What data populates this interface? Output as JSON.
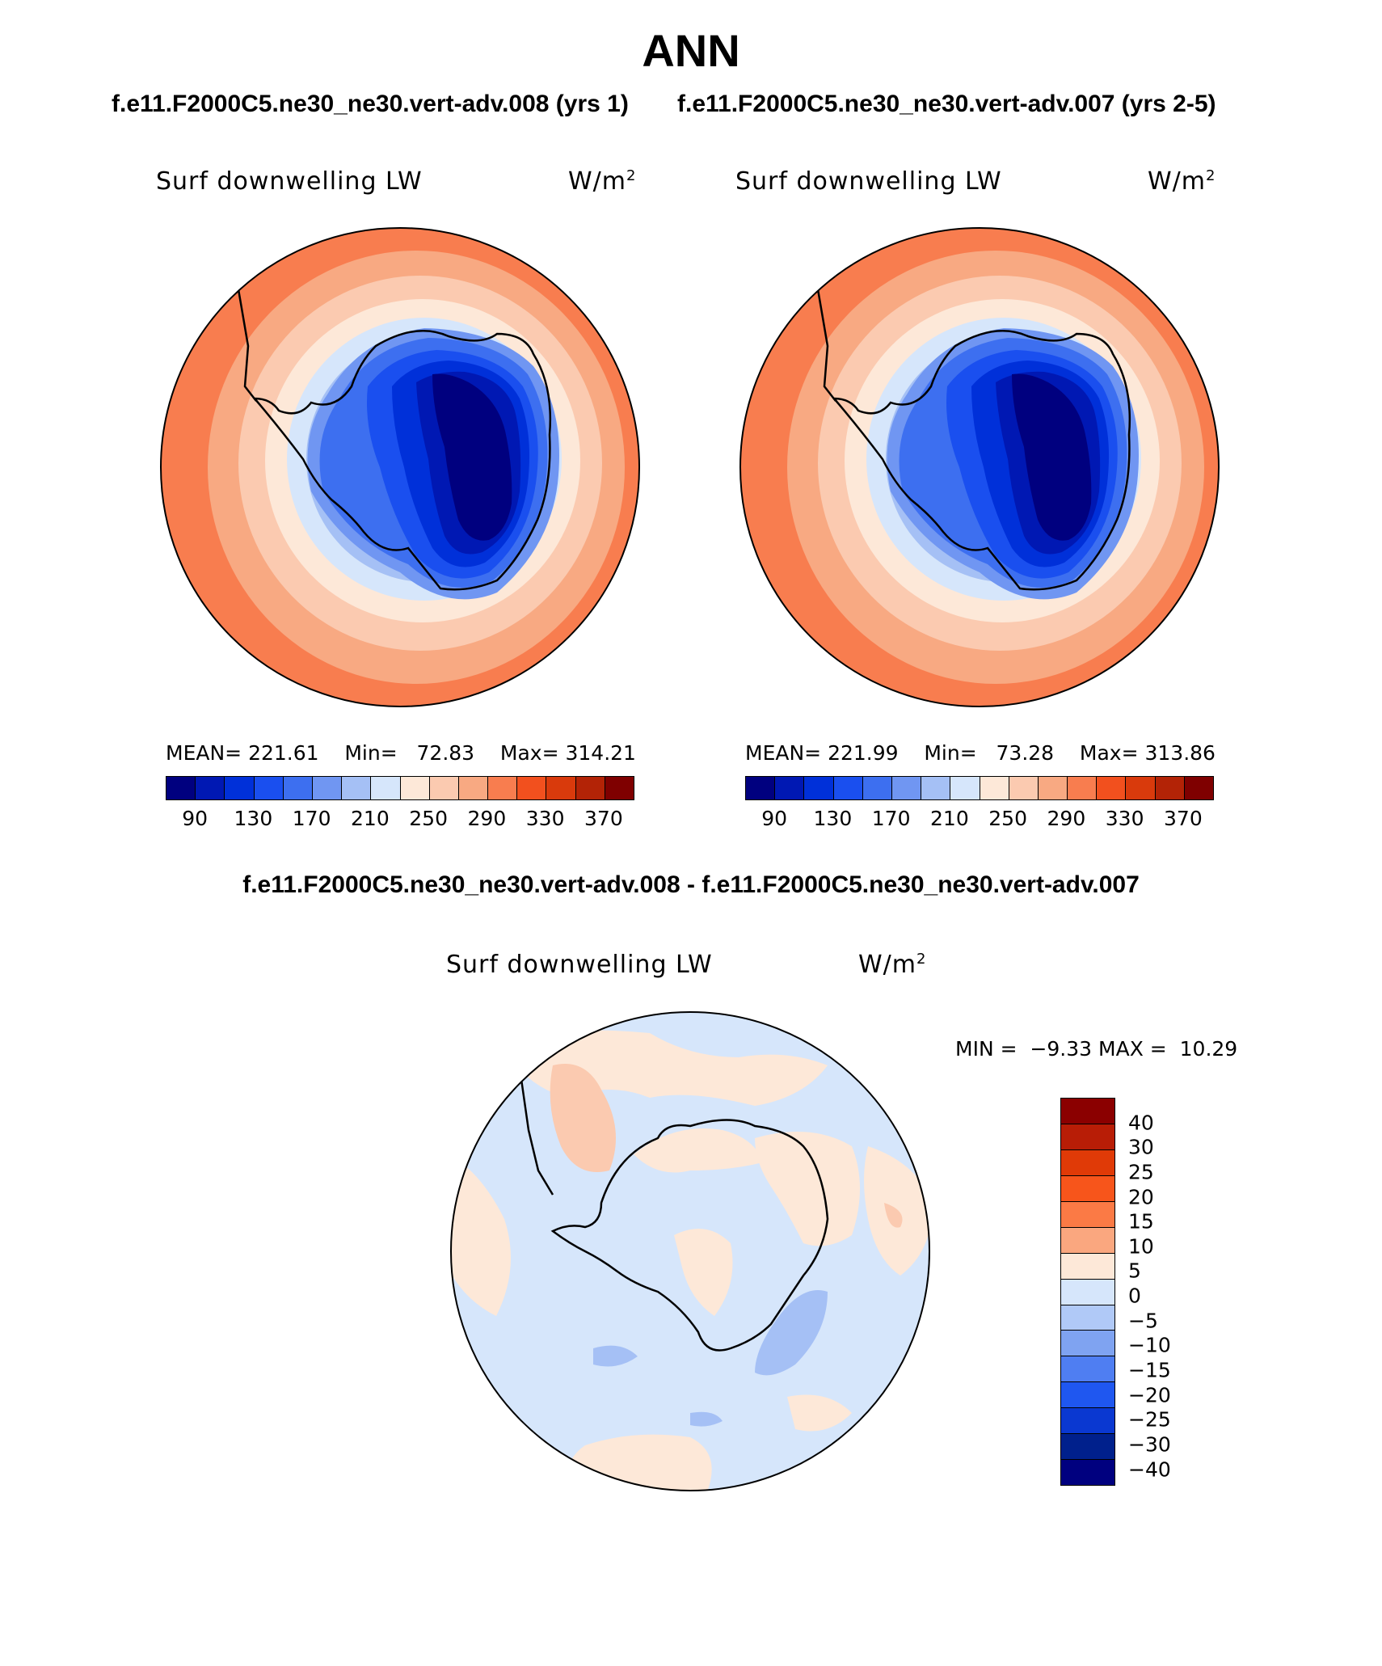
{
  "title": "ANN",
  "case_a_title": "f.e11.F2000C5.ne30_ne30.vert-adv.008 (yrs 1)",
  "case_b_title": "f.e11.F2000C5.ne30_ne30.vert-adv.007 (yrs 2-5)",
  "diff_title": "f.e11.F2000C5.ne30_ne30.vert-adv.008 - f.e11.F2000C5.ne30_ne30.vert-adv.007",
  "variable": "Surf downwelling LW",
  "units_base": "W/m",
  "units_exp": "2",
  "panel_a": {
    "mean_label": "MEAN=",
    "mean": "221.61",
    "min_label": "Min=",
    "min": "72.83",
    "max_label": "Max=",
    "max": "314.21"
  },
  "panel_b": {
    "mean_label": "MEAN=",
    "mean": "221.99",
    "min_label": "Min=",
    "min": "73.28",
    "max_label": "Max=",
    "max": "313.86"
  },
  "panel_diff": {
    "min_label": "MIN =",
    "min": "−9.33",
    "max_label": "MAX =",
    "max": "10.29"
  },
  "abs_colorbar": {
    "colors": [
      "#00007f",
      "#0018b3",
      "#0030d9",
      "#1a4fef",
      "#3d6ff0",
      "#7096f2",
      "#a5c0f5",
      "#d6e6fb",
      "#fde8d8",
      "#fbcab0",
      "#f8a982",
      "#f87d4f",
      "#f2501e",
      "#d93a0c",
      "#b32306",
      "#7f0000"
    ],
    "ticks": [
      "90",
      "130",
      "170",
      "210",
      "250",
      "290",
      "330",
      "370"
    ]
  },
  "diff_colorbar": {
    "colors": [
      "#8b0000",
      "#b81d06",
      "#e03a07",
      "#f7551b",
      "#fb7a45",
      "#faa77f",
      "#fde8d8",
      "#d6e6fb",
      "#b0c9f7",
      "#7fa3f1",
      "#4f7ef2",
      "#1f57f0",
      "#0a38d1",
      "#00208c",
      "#00007f"
    ],
    "ticks": [
      "40",
      "30",
      "25",
      "20",
      "15",
      "10",
      "5",
      "0",
      "−5",
      "−10",
      "−15",
      "−20",
      "−25",
      "−30",
      "−40"
    ]
  },
  "chart_data": [
    {
      "type": "heatmap",
      "projection": "south-polar stereographic",
      "title": "Surf downwelling LW",
      "units": "W/m2",
      "case": "f.e11.F2000C5.ne30_ne30.vert-adv.008 (yrs 1)",
      "mean": 221.61,
      "min": 72.83,
      "max": 314.21,
      "levels": [
        90,
        130,
        170,
        210,
        250,
        290,
        330,
        370
      ]
    },
    {
      "type": "heatmap",
      "projection": "south-polar stereographic",
      "title": "Surf downwelling LW",
      "units": "W/m2",
      "case": "f.e11.F2000C5.ne30_ne30.vert-adv.007 (yrs 2-5)",
      "mean": 221.99,
      "min": 73.28,
      "max": 313.86,
      "levels": [
        90,
        130,
        170,
        210,
        250,
        290,
        330,
        370
      ]
    },
    {
      "type": "heatmap",
      "projection": "south-polar stereographic",
      "title": "Surf downwelling LW",
      "units": "W/m2",
      "case": "difference 008 - 007",
      "min": -9.33,
      "max": 10.29,
      "levels": [
        -40,
        -30,
        -25,
        -20,
        -15,
        -10,
        -5,
        0,
        5,
        10,
        15,
        20,
        25,
        30,
        40
      ]
    }
  ]
}
